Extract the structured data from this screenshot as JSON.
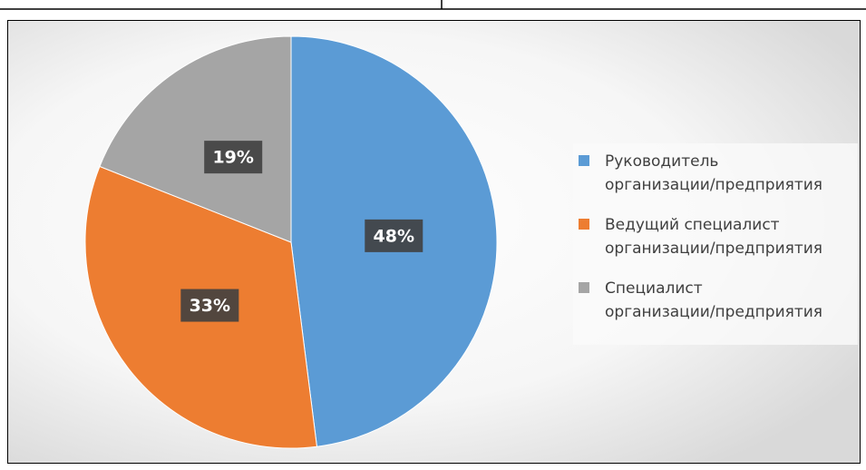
{
  "chart_data": {
    "type": "pie",
    "categories": [
      "Руководитель организации/предприятия",
      "Ведущий специалист организации/предприятия",
      "Специалист организации/предприятия"
    ],
    "values": [
      48,
      33,
      19
    ],
    "value_labels": [
      "48%",
      "33%",
      "19%"
    ],
    "colors": [
      "#5b9bd5",
      "#ed7d31",
      "#a5a5a5"
    ],
    "legend": "right"
  }
}
